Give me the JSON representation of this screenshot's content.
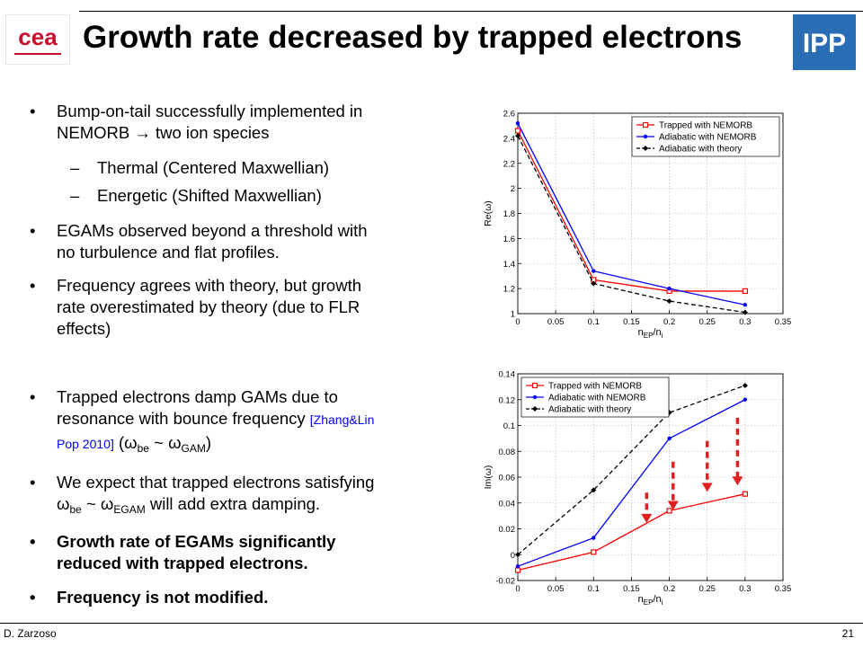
{
  "header": {
    "title": "Growth rate decreased by trapped electrons",
    "left_logo_text": "cea",
    "right_logo_text": "IPP"
  },
  "bullets": {
    "b1_line1": "Bump-on-tail successfully implemented in",
    "b1_line2": "NEMORB → two ion species",
    "sub1": "Thermal (Centered Maxwellian)",
    "sub2": "Energetic (Shifted Maxwellian)",
    "b2_line1": "EGAMs observed beyond a threshold with",
    "b2_line2": "no turbulence and flat profiles.",
    "b3_line1": "Frequency agrees with theory, but growth",
    "b3_line2": "rate overestimated by theory (due to FLR",
    "b3_line3": "effects)",
    "b4_line1": "Trapped electrons damp GAMs due to",
    "b4_line2": "resonance with bounce frequency",
    "b4_ref_a": "[Zhang&Lin",
    "b4_ref_b": "Pop 2010]",
    "b4_open": "(",
    "omega": "ω",
    "sub_be": "be",
    "sim": "~",
    "sub_gam": "GAM",
    "b4_close": ")",
    "b5_line1": "We expect that trapped electrons satisfying",
    "sub_egam": "EGAM",
    "b5_tail": "will add extra damping.",
    "b6_line1": "Growth rate of EGAMs significantly",
    "b6_line2": "reduced with trapped electrons.",
    "b7_line1": "Frequency is not modified.",
    "bullet_mark": "•",
    "dash_mark": "–"
  },
  "footer": {
    "author": "D. Zarzoso",
    "page": "21"
  },
  "colors": {
    "trapped": "#ff0000",
    "adiabatic": "#0000ff",
    "theory": "#000000",
    "arrow": "#e02020"
  },
  "chart_data": [
    {
      "type": "line",
      "xlabel": "nEP/ni",
      "ylabel": "Re(ω)",
      "xlim": [
        0,
        0.35
      ],
      "ylim": [
        1,
        2.6
      ],
      "xticks": [
        "0",
        "0.05",
        "0.1",
        "0.15",
        "0.2",
        "0.25",
        "0.3",
        "0.35"
      ],
      "yticks": [
        "1",
        "1.2",
        "1.4",
        "1.6",
        "1.8",
        "2",
        "2.2",
        "2.4",
        "2.6"
      ],
      "legend_placement": "top-right",
      "series": [
        {
          "name": "Trapped with NEMORB",
          "color": "#ff0000",
          "dash": false,
          "marker": "square",
          "x": [
            0,
            0.1,
            0.2,
            0.3
          ],
          "y": [
            2.46,
            1.27,
            1.18,
            1.18
          ]
        },
        {
          "name": "Adiabatic with NEMORB",
          "color": "#0000ff",
          "dash": false,
          "marker": "dot",
          "x": [
            0,
            0.1,
            0.2,
            0.3
          ],
          "y": [
            2.52,
            1.34,
            1.2,
            1.07
          ]
        },
        {
          "name": "Adiabatic with theory",
          "color": "#000000",
          "dash": true,
          "marker": "diamond",
          "x": [
            0,
            0.1,
            0.2,
            0.3
          ],
          "y": [
            2.42,
            1.24,
            1.1,
            1.01
          ]
        }
      ]
    },
    {
      "type": "line",
      "xlabel": "nEP/ni",
      "ylabel": "Im(ω)",
      "xlim": [
        0,
        0.35
      ],
      "ylim": [
        -0.02,
        0.14
      ],
      "xticks": [
        "0",
        "0.05",
        "0.1",
        "0.15",
        "0.2",
        "0.25",
        "0.3",
        "0.35"
      ],
      "yticks": [
        "-0.02",
        "0",
        "0.02",
        "0.04",
        "0.06",
        "0.08",
        "0.1",
        "0.12",
        "0.14"
      ],
      "legend_placement": "top-left",
      "series": [
        {
          "name": "Trapped with NEMORB",
          "color": "#ff0000",
          "dash": false,
          "marker": "square",
          "x": [
            0,
            0.1,
            0.2,
            0.3
          ],
          "y": [
            -0.012,
            0.002,
            0.034,
            0.047
          ]
        },
        {
          "name": "Adiabatic with NEMORB",
          "color": "#0000ff",
          "dash": false,
          "marker": "dot",
          "x": [
            0,
            0.1,
            0.2,
            0.3
          ],
          "y": [
            -0.009,
            0.013,
            0.09,
            0.12
          ]
        },
        {
          "name": "Adiabatic with theory",
          "color": "#000000",
          "dash": true,
          "marker": "diamond",
          "x": [
            0,
            0.1,
            0.2,
            0.3
          ],
          "y": [
            0.0,
            0.05,
            0.11,
            0.131
          ]
        }
      ],
      "annotations": [
        {
          "type": "arrow",
          "x": 0.17,
          "y_from": 0.048,
          "y_to": 0.026
        },
        {
          "type": "arrow",
          "x": 0.205,
          "y_from": 0.072,
          "y_to": 0.036
        },
        {
          "type": "arrow",
          "x": 0.25,
          "y_from": 0.088,
          "y_to": 0.05
        },
        {
          "type": "arrow",
          "x": 0.29,
          "y_from": 0.106,
          "y_to": 0.055
        }
      ]
    }
  ]
}
